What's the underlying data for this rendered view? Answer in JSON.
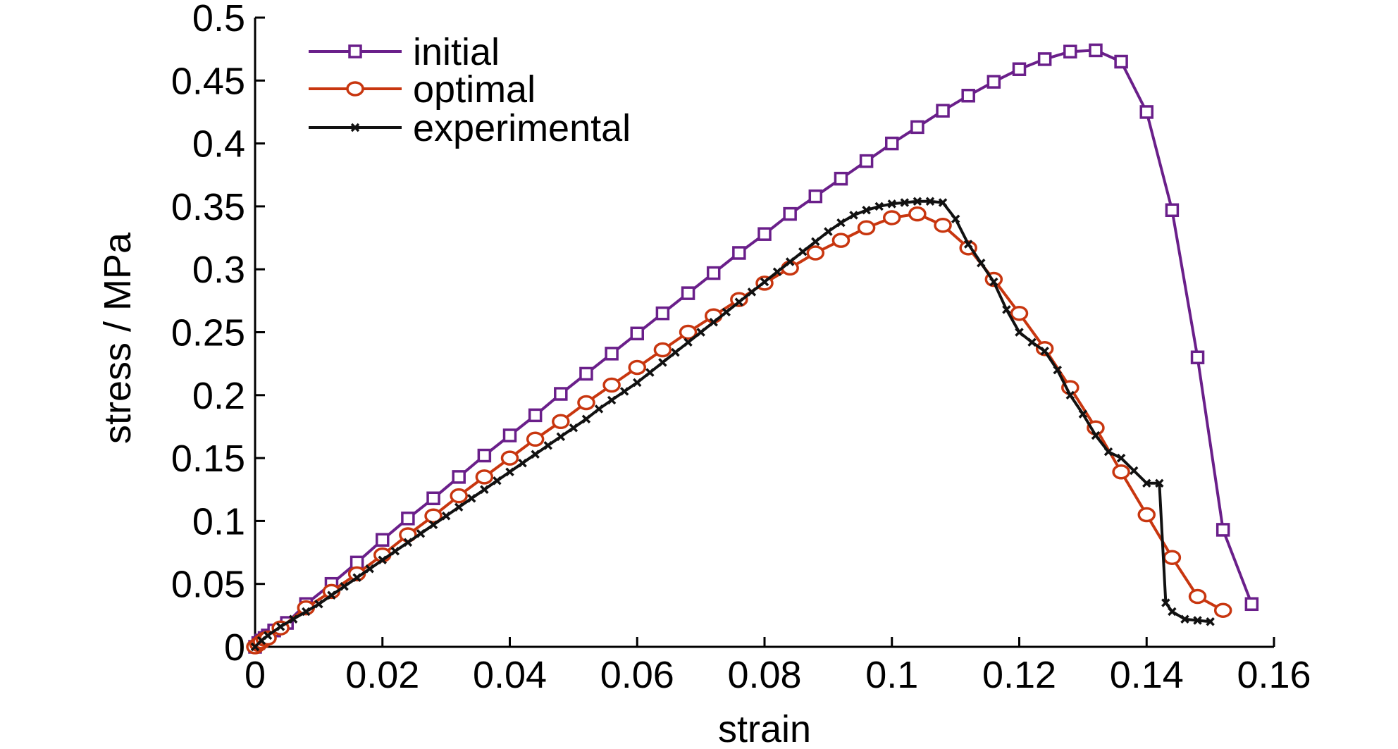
{
  "chart_data": {
    "type": "line",
    "xlabel": "strain",
    "ylabel": "stress / MPa",
    "xlim": [
      0,
      0.16
    ],
    "ylim": [
      0,
      0.5
    ],
    "xticks": [
      "0",
      "0.02",
      "0.04",
      "0.06",
      "0.08",
      "0.1",
      "0.12",
      "0.14",
      "0.16"
    ],
    "yticks": [
      "0",
      "0.05",
      "0.1",
      "0.15",
      "0.2",
      "0.25",
      "0.3",
      "0.35",
      "0.4",
      "0.45",
      "0.5"
    ],
    "grid": false,
    "legend_position": "top-left",
    "series": [
      {
        "name": "initial",
        "color": "#6a1f8a",
        "marker": "square",
        "x": [
          0,
          0.0005,
          0.001,
          0.0015,
          0.002,
          0.003,
          0.005,
          0.008,
          0.012,
          0.016,
          0.02,
          0.024,
          0.028,
          0.032,
          0.036,
          0.04,
          0.044,
          0.048,
          0.052,
          0.056,
          0.06,
          0.064,
          0.068,
          0.072,
          0.076,
          0.08,
          0.084,
          0.088,
          0.092,
          0.096,
          0.1,
          0.104,
          0.108,
          0.112,
          0.116,
          0.12,
          0.124,
          0.128,
          0.132,
          0.136,
          0.14,
          0.144,
          0.148,
          0.152,
          0.1565
        ],
        "y": [
          0,
          0.003,
          0.005,
          0.007,
          0.009,
          0.013,
          0.019,
          0.034,
          0.05,
          0.067,
          0.085,
          0.102,
          0.118,
          0.135,
          0.152,
          0.168,
          0.184,
          0.201,
          0.217,
          0.233,
          0.249,
          0.265,
          0.281,
          0.297,
          0.313,
          0.328,
          0.344,
          0.358,
          0.372,
          0.386,
          0.4,
          0.413,
          0.426,
          0.438,
          0.449,
          0.459,
          0.467,
          0.473,
          0.474,
          0.465,
          0.425,
          0.347,
          0.23,
          0.093,
          0.034
        ]
      },
      {
        "name": "optimal",
        "color": "#c8360f",
        "marker": "circle",
        "x": [
          0,
          0.0005,
          0.001,
          0.0015,
          0.002,
          0.004,
          0.008,
          0.012,
          0.016,
          0.02,
          0.024,
          0.028,
          0.032,
          0.036,
          0.04,
          0.044,
          0.048,
          0.052,
          0.056,
          0.06,
          0.064,
          0.068,
          0.072,
          0.076,
          0.08,
          0.084,
          0.088,
          0.092,
          0.096,
          0.1,
          0.104,
          0.108,
          0.112,
          0.116,
          0.12,
          0.124,
          0.128,
          0.132,
          0.136,
          0.14,
          0.144,
          0.148,
          0.152
        ],
        "y": [
          0,
          0.002,
          0.004,
          0.006,
          0.007,
          0.015,
          0.031,
          0.044,
          0.058,
          0.073,
          0.089,
          0.104,
          0.12,
          0.135,
          0.15,
          0.165,
          0.179,
          0.194,
          0.208,
          0.222,
          0.236,
          0.25,
          0.263,
          0.276,
          0.289,
          0.301,
          0.313,
          0.323,
          0.333,
          0.341,
          0.344,
          0.335,
          0.317,
          0.292,
          0.265,
          0.237,
          0.206,
          0.174,
          0.139,
          0.105,
          0.071,
          0.04,
          0.029
        ]
      },
      {
        "name": "experimental",
        "color": "#111111",
        "marker": "x",
        "x": [
          0,
          0.001,
          0.002,
          0.004,
          0.006,
          0.008,
          0.01,
          0.012,
          0.014,
          0.016,
          0.018,
          0.02,
          0.022,
          0.024,
          0.026,
          0.028,
          0.03,
          0.032,
          0.034,
          0.036,
          0.038,
          0.04,
          0.042,
          0.044,
          0.046,
          0.048,
          0.05,
          0.052,
          0.054,
          0.056,
          0.058,
          0.06,
          0.062,
          0.064,
          0.066,
          0.068,
          0.07,
          0.072,
          0.074,
          0.076,
          0.078,
          0.08,
          0.082,
          0.084,
          0.086,
          0.088,
          0.09,
          0.092,
          0.094,
          0.096,
          0.098,
          0.1,
          0.102,
          0.104,
          0.106,
          0.108,
          0.11,
          0.112,
          0.114,
          0.116,
          0.118,
          0.12,
          0.122,
          0.124,
          0.126,
          0.128,
          0.13,
          0.132,
          0.134,
          0.136,
          0.138,
          0.14,
          0.142,
          0.143,
          0.144,
          0.146,
          0.148,
          0.15
        ],
        "y": [
          0,
          0.005,
          0.009,
          0.016,
          0.022,
          0.028,
          0.034,
          0.041,
          0.048,
          0.055,
          0.062,
          0.069,
          0.076,
          0.083,
          0.09,
          0.097,
          0.104,
          0.111,
          0.118,
          0.125,
          0.132,
          0.139,
          0.146,
          0.153,
          0.16,
          0.167,
          0.174,
          0.181,
          0.189,
          0.196,
          0.203,
          0.21,
          0.218,
          0.226,
          0.234,
          0.242,
          0.25,
          0.258,
          0.266,
          0.274,
          0.282,
          0.29,
          0.298,
          0.306,
          0.314,
          0.322,
          0.33,
          0.337,
          0.343,
          0.347,
          0.35,
          0.352,
          0.353,
          0.354,
          0.354,
          0.353,
          0.34,
          0.32,
          0.305,
          0.29,
          0.268,
          0.25,
          0.242,
          0.235,
          0.22,
          0.2,
          0.185,
          0.168,
          0.155,
          0.15,
          0.14,
          0.13,
          0.13,
          0.035,
          0.028,
          0.022,
          0.021,
          0.02
        ]
      }
    ]
  }
}
